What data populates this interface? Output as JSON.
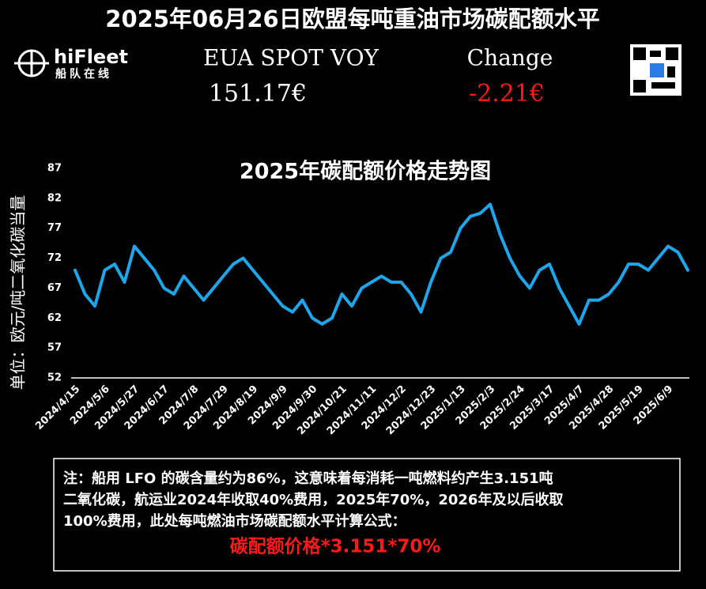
{
  "header": {
    "title": "2025年06月26日欧盟每吨重油市场碳配额水平",
    "logo": "hiFleet",
    "logo_sub": "船队在线",
    "price_label": "EUA SPOT VOY",
    "change_label": "Change",
    "price": "151.17€",
    "change": "-2.21€"
  },
  "chart_data": {
    "type": "line",
    "title": "2025年碳配额价格走势图",
    "ylabel": "单位：欧元/吨二氧化碳当量",
    "categories": [
      "2024/4/15",
      null,
      null,
      "2024/5/6",
      null,
      null,
      "2024/5/27",
      null,
      null,
      "2024/6/17",
      null,
      null,
      "2024/7/8",
      null,
      null,
      "2024/7/29",
      null,
      null,
      "2024/8/19",
      null,
      null,
      "2024/9/9",
      null,
      null,
      "2024/9/30",
      null,
      null,
      "2024/10/21",
      null,
      null,
      "2024/11/11",
      null,
      null,
      "2024/12/2",
      null,
      null,
      "2024/12/23",
      null,
      null,
      "2025/1/13",
      null,
      null,
      "2025/2/3",
      null,
      null,
      "2025/2/24",
      null,
      null,
      "2025/3/17",
      null,
      null,
      "2025/4/7",
      null,
      null,
      "2025/4/28",
      null,
      null,
      "2025/5/19",
      null,
      null,
      "2025/6/9",
      null,
      null
    ],
    "values": [
      70,
      66,
      64,
      70,
      71,
      68,
      74,
      72,
      70,
      67,
      66,
      69,
      67,
      65,
      67,
      69,
      71,
      72,
      70,
      68,
      66,
      64,
      63,
      65,
      62,
      61,
      62,
      66,
      64,
      67,
      68,
      69,
      68,
      68,
      66,
      63,
      68,
      72,
      73,
      77,
      79,
      79.5,
      81,
      76,
      72,
      69,
      67,
      70,
      71,
      67,
      64,
      61,
      65,
      65,
      66,
      68,
      71,
      71,
      70,
      72,
      74,
      73,
      70
    ],
    "color": "#1ea6ea",
    "ylim": [
      52,
      87
    ],
    "yticks": [
      52,
      57,
      62,
      67,
      72,
      77,
      82,
      87
    ]
  },
  "note": {
    "lines": [
      "注：船用 LFO 的碳含量约为86%，这意味着每消耗一吨燃料约产生3.151吨",
      "二氧化碳，航运业2024年收取40%费用，2025年70%，2026年及以后收取",
      "100%费用，此处每吨燃油市场碳配额水平计算公式："
    ],
    "formula": "碳配额价格*3.151*70%"
  }
}
